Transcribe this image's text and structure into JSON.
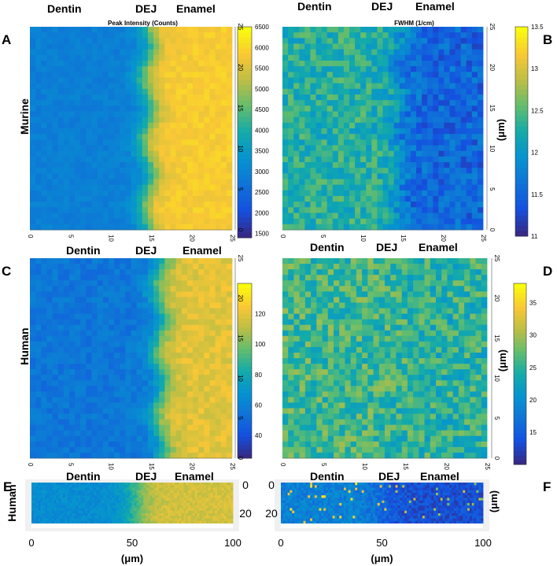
{
  "chart_data": [
    {
      "type": "heatmap",
      "id": "A",
      "panel_label": "A",
      "row_label": "Murine",
      "title": "Peak Intensity (Counts)",
      "region_labels": [
        "Dentin",
        "DEJ",
        "Enamel"
      ],
      "x_ticks": [
        "0",
        "5",
        "10",
        "15",
        "20",
        "25"
      ],
      "y_ticks": [
        "0",
        "5",
        "10",
        "15",
        "20",
        "25"
      ],
      "xlim": [
        0,
        25
      ],
      "ylim": [
        0,
        25
      ],
      "colorbar_ticks": [
        "1500",
        "2000",
        "2500",
        "3000",
        "3500",
        "4000",
        "4500",
        "5000",
        "5500",
        "6000",
        "6500"
      ],
      "colorbar_range": [
        1400,
        6500
      ],
      "boundary_x": 14.5,
      "low_value": 2900,
      "high_value": 5900,
      "noise": 180
    },
    {
      "type": "heatmap",
      "id": "B",
      "panel_label": "B",
      "title": "FWHM (1/cm)",
      "ylabel": "(μm)",
      "region_labels": [
        "Dentin",
        "DEJ",
        "Enamel"
      ],
      "x_ticks": [
        "0",
        "5",
        "10",
        "15",
        "20",
        "25"
      ],
      "y_ticks": [
        "0",
        "5",
        "10",
        "15",
        "20",
        "25"
      ],
      "xlim": [
        0,
        25
      ],
      "ylim": [
        0,
        25
      ],
      "colorbar_ticks": [
        "11",
        "11.5",
        "12",
        "12.5",
        "13",
        "13.5"
      ],
      "colorbar_range": [
        11,
        13.5
      ],
      "boundary_x": 14.5,
      "low_value": 12.3,
      "high_value": 11.5,
      "noise": 0.3
    },
    {
      "type": "heatmap",
      "id": "C",
      "panel_label": "C",
      "row_label": "Human",
      "region_labels": [
        "Dentin",
        "DEJ",
        "Enamel"
      ],
      "x_ticks": [
        "0",
        "5",
        "10",
        "15",
        "20",
        "25"
      ],
      "y_ticks": [
        "0",
        "5",
        "10",
        "15",
        "20",
        "25"
      ],
      "xlim": [
        0,
        25
      ],
      "ylim": [
        0,
        25
      ],
      "colorbar_ticks": [
        "40",
        "60",
        "80",
        "100",
        "120"
      ],
      "colorbar_range": [
        25,
        140
      ],
      "boundary_x": 16,
      "low_value": 55,
      "high_value": 120,
      "noise": 6
    },
    {
      "type": "heatmap",
      "id": "D",
      "panel_label": "D",
      "ylabel": "(μm)",
      "region_labels": [
        "Dentin",
        "DEJ",
        "Enamel"
      ],
      "x_ticks": [
        "0",
        "5",
        "10",
        "15",
        "20",
        "25"
      ],
      "y_ticks": [
        "0",
        "5",
        "10",
        "15",
        "20",
        "25"
      ],
      "xlim": [
        0,
        25
      ],
      "ylim": [
        0,
        25
      ],
      "colorbar_ticks": [
        "15",
        "20",
        "25",
        "30",
        "35"
      ],
      "colorbar_range": [
        10,
        38
      ],
      "boundary_x": 14,
      "low_value": 26,
      "high_value": 25,
      "noise": 4
    },
    {
      "type": "heatmap",
      "id": "E",
      "panel_label": "E",
      "row_label": "Human",
      "region_labels": [
        "Dentin",
        "DEJ",
        "Enamel"
      ],
      "x_ticks": [
        "0",
        "50",
        "100"
      ],
      "y_ticks": [
        "0",
        "20"
      ],
      "xlabel": "(μm)",
      "xlim": [
        0,
        100
      ],
      "ylim": [
        0,
        25
      ],
      "boundary_x": 52,
      "low_value": 0.35,
      "high_value": 0.8,
      "noise": 0.05
    },
    {
      "type": "heatmap",
      "id": "F",
      "panel_label": "F",
      "ylabel": "(μm)",
      "region_labels": [
        "Dentin",
        "DEJ",
        "Enamel"
      ],
      "x_ticks": [
        "0",
        "50",
        "100"
      ],
      "y_ticks": [
        "0",
        "20"
      ],
      "xlabel": "(μm)",
      "xlim": [
        0,
        100
      ],
      "ylim": [
        0,
        25
      ],
      "boundary_x": 50,
      "low_value": 0.3,
      "high_value": 0.12,
      "noise": 0.08
    }
  ]
}
